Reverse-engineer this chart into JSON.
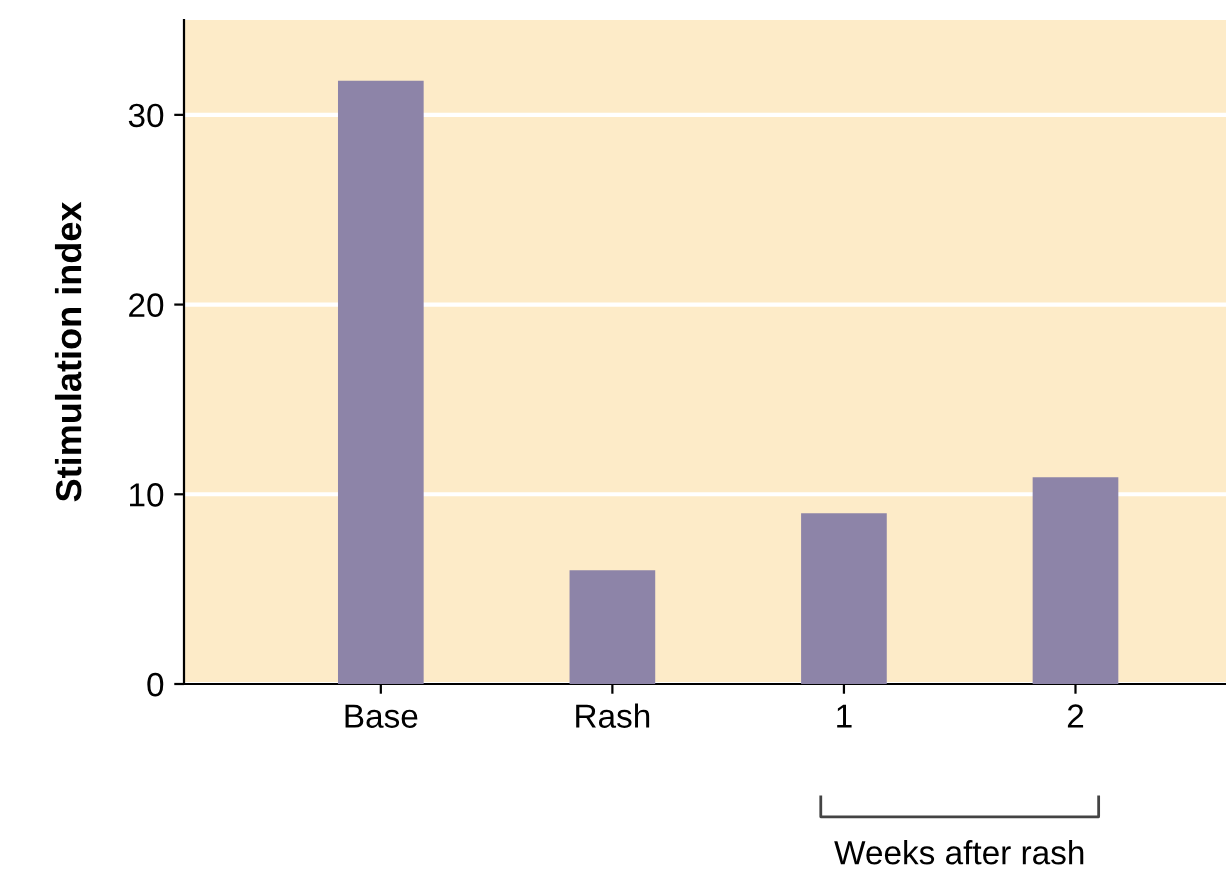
{
  "chart_data": {
    "type": "bar",
    "ylabel": "Stimulation index",
    "categories": [
      "Base",
      "Rash",
      "1",
      "2"
    ],
    "values": [
      31.8,
      6.0,
      9.0,
      10.9
    ],
    "color": "#8d84a8",
    "ylim": [
      0,
      35
    ],
    "yticks": [
      0,
      10,
      20,
      30
    ],
    "grid": "y",
    "annotations": [
      "Weeks after rash"
    ]
  }
}
